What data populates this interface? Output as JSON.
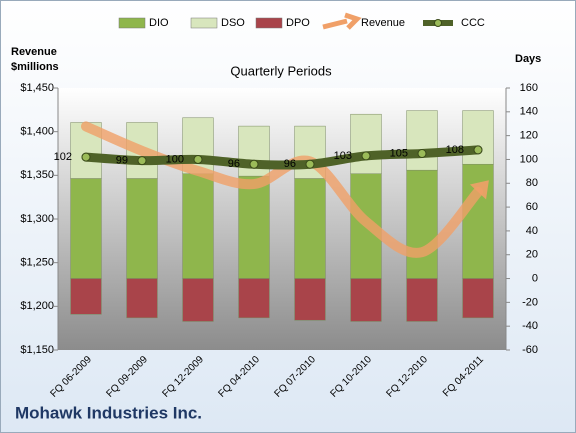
{
  "chart_data": {
    "type": "combo",
    "title": "Quarterly Periods",
    "y_label": "Revenue $millions",
    "y2_label": "Days",
    "footer": "Mohawk Industries Inc.",
    "categories": [
      "FQ 06-2009",
      "FQ 09-2009",
      "FQ 12-2009",
      "FQ 04-2010",
      "FQ 07-2010",
      "FQ 10-2010",
      "FQ 12-2010",
      "FQ 04-2011"
    ],
    "ylim": [
      1150,
      1450
    ],
    "yticks": [
      {
        "value": 1150,
        "label": "$1,150"
      },
      {
        "value": 1200,
        "label": "$1,200"
      },
      {
        "value": 1250,
        "label": "$1,250"
      },
      {
        "value": 1300,
        "label": "$1,300"
      },
      {
        "value": 1350,
        "label": "$1,350"
      },
      {
        "value": 1400,
        "label": "$1,400"
      },
      {
        "value": 1450,
        "label": "$1,450"
      }
    ],
    "y2lim": [
      -60,
      160
    ],
    "y2ticks": [
      -60,
      -40,
      -20,
      0,
      20,
      40,
      60,
      80,
      100,
      120,
      140,
      160
    ],
    "series": [
      {
        "name": "DIO",
        "type": "bar",
        "axis": "y2",
        "color": "#8fb64c",
        "values": [
          84,
          84,
          88,
          86,
          84,
          88,
          91,
          96
        ]
      },
      {
        "name": "DSO",
        "type": "bar",
        "axis": "y2",
        "color": "#d8e6bd",
        "values": [
          47,
          47,
          47,
          42,
          44,
          50,
          50,
          45
        ]
      },
      {
        "name": "DPO",
        "type": "bar",
        "axis": "y2",
        "color": "#a9444a",
        "values": [
          -30,
          -33,
          -36,
          -33,
          -35,
          -36,
          -36,
          -33
        ]
      },
      {
        "name": "Revenue",
        "type": "line",
        "color": "#f0a068",
        "values": [
          1406,
          1378,
          1355,
          1340,
          1366,
          1297,
          1262,
          1331
        ]
      },
      {
        "name": "CCC",
        "type": "line",
        "axis": "y2",
        "color": "#4f6228",
        "values": [
          102,
          99,
          100,
          96,
          96,
          103,
          105,
          108
        ]
      }
    ]
  }
}
